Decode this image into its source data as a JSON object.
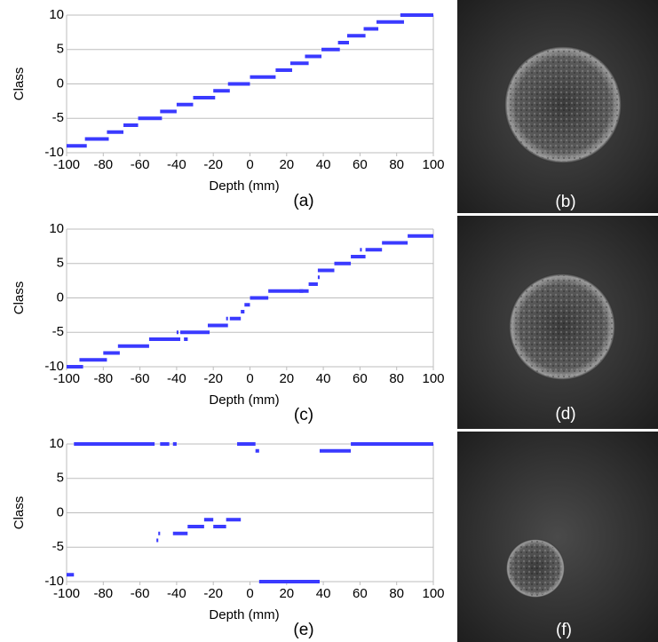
{
  "chart_data": [
    {
      "type": "segments",
      "ylabel": "Class",
      "xlabel": "Depth (mm)",
      "panel": "(a)",
      "color": "#3a3aff",
      "grid": true,
      "xlim": [
        -100,
        100
      ],
      "ylim": [
        -10,
        10
      ],
      "xticks": [
        -100,
        -80,
        -60,
        -40,
        -20,
        0,
        20,
        40,
        60,
        80,
        100
      ],
      "yticks": [
        -10,
        -5,
        0,
        5,
        10
      ],
      "x_start": [
        -100,
        -90,
        -78,
        -69,
        -61,
        -49,
        -40,
        -31,
        -20,
        -12,
        0,
        14,
        22,
        30,
        39,
        48,
        53,
        62,
        69,
        82
      ],
      "x_end": [
        -89,
        -77,
        -69,
        -61,
        -48,
        -40,
        -31,
        -19,
        -11,
        0,
        14,
        23,
        32,
        39,
        49,
        54,
        63,
        70,
        84,
        100
      ],
      "values": [
        -9,
        -8,
        -7,
        -6,
        -5,
        -4,
        -3,
        -2,
        -1,
        0,
        1,
        2,
        3,
        4,
        5,
        6,
        7,
        8,
        9,
        10
      ]
    },
    {
      "type": "segments",
      "ylabel": "Class",
      "xlabel": "Depth (mm)",
      "panel": "(c)",
      "color": "#3a3aff",
      "grid": true,
      "xlim": [
        -100,
        100
      ],
      "ylim": [
        -10,
        10
      ],
      "xticks": [
        -100,
        -80,
        -60,
        -40,
        -20,
        0,
        20,
        40,
        60,
        80,
        100
      ],
      "yticks": [
        -10,
        -5,
        0,
        5,
        10
      ],
      "x_start": [
        -100,
        -93,
        -80,
        -72,
        -55,
        -36,
        -40,
        -38,
        -35,
        -23,
        -13,
        -11,
        -5,
        -3,
        0,
        10,
        27,
        32,
        37,
        37,
        46,
        55,
        60,
        63,
        72,
        86
      ],
      "x_end": [
        -91,
        -78,
        -71,
        -55,
        -38,
        -34,
        -39,
        -22,
        -34,
        -12,
        -12,
        -5,
        -3,
        0,
        10,
        32,
        29,
        37,
        38,
        46,
        55,
        63,
        61,
        72,
        86,
        100
      ],
      "values": [
        -10,
        -9,
        -8,
        -7,
        -6,
        -6,
        -5,
        -5,
        -6,
        -4,
        -3,
        -3,
        -2,
        -1,
        0,
        1,
        1,
        2,
        3,
        4,
        5,
        6,
        7,
        7,
        8,
        9
      ]
    },
    {
      "type": "segments",
      "ylabel": "Class",
      "xlabel": "Depth (mm)",
      "panel": "(e)",
      "color": "#3a3aff",
      "grid": true,
      "xlim": [
        -100,
        100
      ],
      "ylim": [
        -10,
        10
      ],
      "xticks": [
        -100,
        -80,
        -60,
        -40,
        -20,
        0,
        20,
        40,
        60,
        80,
        100
      ],
      "yticks": [
        -10,
        -5,
        0,
        5,
        10
      ],
      "x_start": [
        -100,
        -96,
        -49,
        -42,
        -7,
        3,
        -51,
        -50,
        -42,
        -34,
        -20,
        -25,
        -13,
        5,
        38,
        55
      ],
      "x_end": [
        -96,
        -52,
        -44,
        -40,
        3,
        5,
        -50,
        -49,
        -34,
        -25,
        -13,
        -20,
        -5,
        38,
        55,
        100
      ],
      "values": [
        -9,
        10,
        10,
        10,
        10,
        9,
        -4,
        -3,
        -3,
        -2,
        -2,
        -1,
        -1,
        -10,
        9,
        10
      ]
    }
  ],
  "images": [
    {
      "label": "(b)"
    },
    {
      "label": "(d)"
    },
    {
      "label": "(f)"
    }
  ]
}
